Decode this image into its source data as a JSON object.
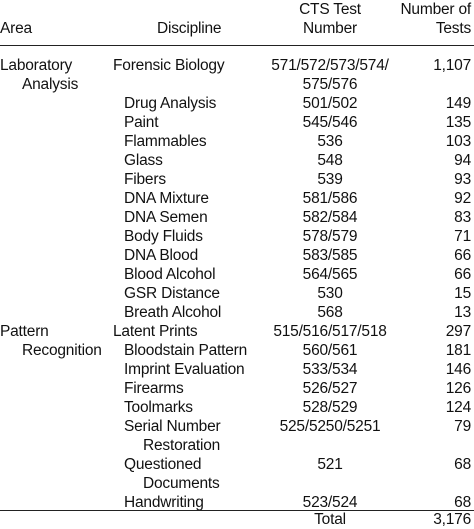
{
  "header": {
    "area": "Area",
    "discipline": "Discipline",
    "test_number_line1": "CTS Test",
    "test_number_line2": "Number",
    "tests_line1": "Number of",
    "tests_line2": "Tests"
  },
  "areas": {
    "lab_line1": "Laboratory",
    "lab_line2": "Analysis",
    "pattern_line1": "Pattern",
    "pattern_line2": "Recognition"
  },
  "rows": [
    {
      "discipline": "Forensic Biology",
      "test_number_line1": "571/572/573/574/",
      "test_number_line2": "575/576",
      "tests": "1,107"
    },
    {
      "discipline": "Drug Analysis",
      "test_number": "501/502",
      "tests": "149"
    },
    {
      "discipline": "Paint",
      "test_number": "545/546",
      "tests": "135"
    },
    {
      "discipline": "Flammables",
      "test_number": "536",
      "tests": "103"
    },
    {
      "discipline": "Glass",
      "test_number": "548",
      "tests": "94"
    },
    {
      "discipline": "Fibers",
      "test_number": "539",
      "tests": "93"
    },
    {
      "discipline": "DNA Mixture",
      "test_number": "581/586",
      "tests": "92"
    },
    {
      "discipline": "DNA Semen",
      "test_number": "582/584",
      "tests": "83"
    },
    {
      "discipline": "Body Fluids",
      "test_number": "578/579",
      "tests": "71"
    },
    {
      "discipline": "DNA Blood",
      "test_number": "583/585",
      "tests": "66"
    },
    {
      "discipline": "Blood Alcohol",
      "test_number": "564/565",
      "tests": "66"
    },
    {
      "discipline": "GSR Distance",
      "test_number": "530",
      "tests": "15"
    },
    {
      "discipline": "Breath Alcohol",
      "test_number": "568",
      "tests": "13"
    },
    {
      "discipline": "Latent Prints",
      "test_number": "515/516/517/518",
      "tests": "297"
    },
    {
      "discipline": "Bloodstain Pattern",
      "test_number": "560/561",
      "tests": "181"
    },
    {
      "discipline": "Imprint Evaluation",
      "test_number": "533/534",
      "tests": "146"
    },
    {
      "discipline": "Firearms",
      "test_number": "526/527",
      "tests": "126"
    },
    {
      "discipline": "Toolmarks",
      "test_number": "528/529",
      "tests": "124"
    },
    {
      "discipline_line1": "Serial Number",
      "discipline_line2": "Restoration",
      "test_number": "525/5250/5251",
      "tests": "79"
    },
    {
      "discipline_line1": "Questioned",
      "discipline_line2": "Documents",
      "test_number": "521",
      "tests": "68"
    },
    {
      "discipline": "Handwriting",
      "test_number": "523/524",
      "tests": "68"
    }
  ],
  "total": {
    "label": "Total",
    "tests": "3,176"
  }
}
